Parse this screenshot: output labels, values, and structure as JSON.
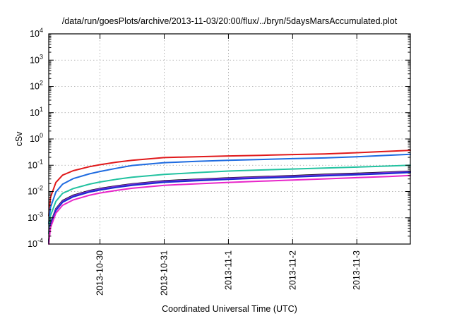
{
  "chart_data": {
    "type": "line",
    "title": "/data/run/goesPlots/archive/2013-11-03/20:00/flux/../bryn/5daysMarsAccumulated.plot",
    "xlabel": "Coordinated Universal Time (UTC)",
    "ylabel": "cSv",
    "yscale": "log",
    "ylim": [
      0.0001,
      10000
    ],
    "xlim": [
      "2013-10-29 04:50",
      "2013-11-03 20:00"
    ],
    "y_ticks": [
      {
        "base": "10",
        "exp": "-4"
      },
      {
        "base": "10",
        "exp": "-3"
      },
      {
        "base": "10",
        "exp": "-2"
      },
      {
        "base": "10",
        "exp": "-1"
      },
      {
        "base": "10",
        "exp": "0"
      },
      {
        "base": "10",
        "exp": "1"
      },
      {
        "base": "10",
        "exp": "2"
      },
      {
        "base": "10",
        "exp": "3"
      },
      {
        "base": "10",
        "exp": "4"
      }
    ],
    "x_ticks": [
      "2013-10-30",
      "2013-10-31",
      "2013-11-1",
      "2013-11-2",
      "2013-11-3"
    ],
    "grid": true,
    "x": [
      "2013-10-29 04:50",
      "2013-10-29 05:30",
      "2013-10-29 07:30",
      "2013-10-29 10:00",
      "2013-10-29 14:00",
      "2013-10-29 20:00",
      "2013-10-30 00:00",
      "2013-10-30 06:00",
      "2013-10-30 12:00",
      "2013-10-31 00:00",
      "2013-10-31 12:00",
      "2013-11-01 00:00",
      "2013-11-01 12:00",
      "2013-11-02 00:00",
      "2013-11-02 12:00",
      "2013-11-03 00:00",
      "2013-11-03 12:00",
      "2013-11-03 20:00"
    ],
    "series": [
      {
        "color": "#e0191b",
        "values": [
          0.0012,
          0.006,
          0.022,
          0.042,
          0.062,
          0.088,
          0.105,
          0.13,
          0.155,
          0.195,
          0.21,
          0.225,
          0.238,
          0.255,
          0.27,
          0.3,
          0.34,
          0.37
        ]
      },
      {
        "color": "#1e6be0",
        "values": [
          0.0006,
          0.0025,
          0.0095,
          0.019,
          0.031,
          0.047,
          0.058,
          0.076,
          0.098,
          0.125,
          0.14,
          0.155,
          0.165,
          0.178,
          0.19,
          0.21,
          0.24,
          0.26
        ]
      },
      {
        "color": "#22c2a0",
        "values": [
          0.00025,
          0.0012,
          0.0042,
          0.0085,
          0.013,
          0.019,
          0.023,
          0.029,
          0.035,
          0.045,
          0.052,
          0.06,
          0.066,
          0.072,
          0.078,
          0.085,
          0.093,
          0.1
        ]
      },
      {
        "color": "#000000",
        "values": [
          0.00013,
          0.0006,
          0.0022,
          0.0045,
          0.0072,
          0.0108,
          0.013,
          0.0162,
          0.0195,
          0.0255,
          0.0292,
          0.033,
          0.0365,
          0.04,
          0.0445,
          0.049,
          0.0545,
          0.059
        ]
      },
      {
        "color": "#7a2fd6",
        "values": [
          0.00012,
          0.00055,
          0.0021,
          0.0043,
          0.0069,
          0.0104,
          0.0125,
          0.0156,
          0.0188,
          0.0245,
          0.028,
          0.0318,
          0.035,
          0.0385,
          0.0428,
          0.047,
          0.0525,
          0.057
        ]
      },
      {
        "color": "#1a2bd1",
        "values": [
          0.00011,
          0.0005,
          0.0019,
          0.0039,
          0.0063,
          0.0095,
          0.0114,
          0.0142,
          0.0172,
          0.0225,
          0.0258,
          0.0292,
          0.0323,
          0.0355,
          0.0395,
          0.0435,
          0.0485,
          0.053
        ]
      },
      {
        "color": "#e826c9",
        "values": [
          0.0001,
          0.00042,
          0.0015,
          0.003,
          0.0048,
          0.0072,
          0.0088,
          0.011,
          0.0133,
          0.0172,
          0.0196,
          0.0222,
          0.0246,
          0.0272,
          0.0302,
          0.0335,
          0.0372,
          0.041
        ]
      }
    ]
  }
}
